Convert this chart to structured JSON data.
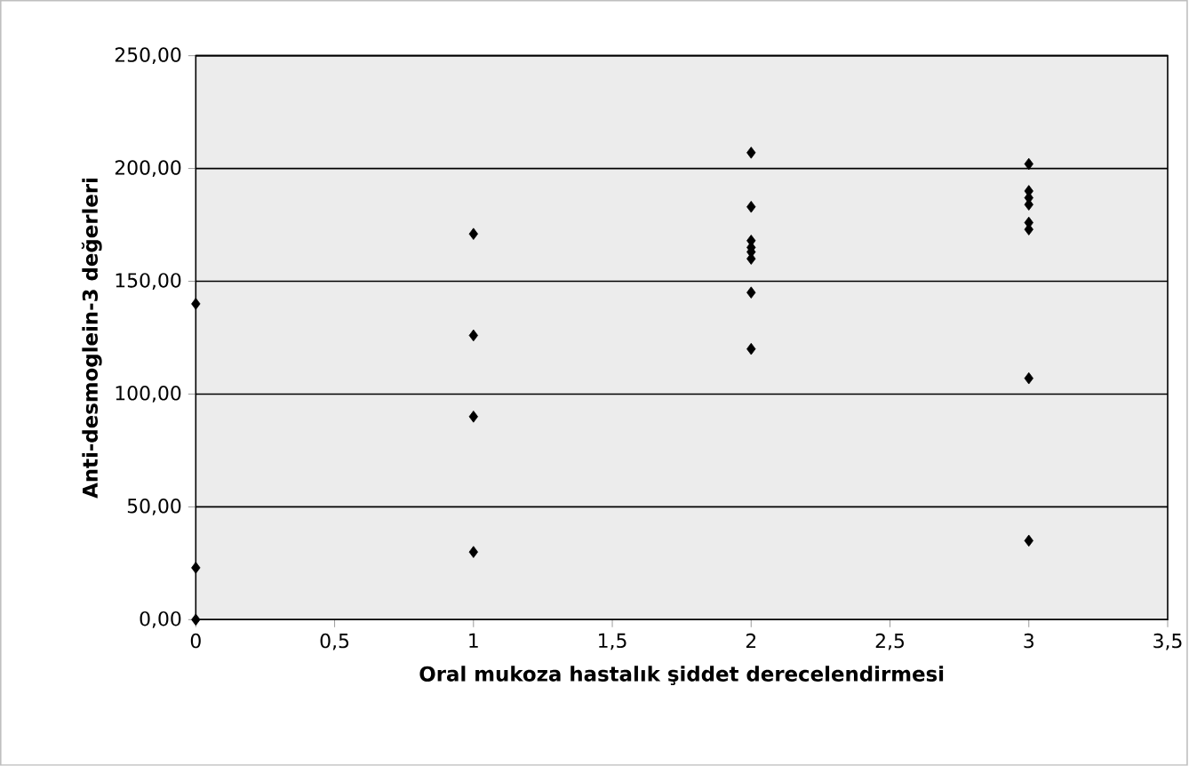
{
  "chart_data": {
    "type": "scatter",
    "xlabel": "Oral mukoza hastalık şiddet derecelendirmesi",
    "ylabel": "Anti-desmoglein-3 değerleri",
    "x": [
      0,
      0,
      0,
      1,
      1,
      1,
      1,
      2,
      2,
      2,
      2,
      2,
      2,
      2,
      2,
      3,
      3,
      3,
      3,
      3,
      3,
      3,
      3
    ],
    "values": [
      140,
      23,
      0,
      171,
      126,
      90,
      30,
      207,
      183,
      168,
      165,
      163,
      160,
      145,
      120,
      202,
      190,
      187,
      184,
      176,
      173,
      107,
      35
    ],
    "color": "#000000",
    "marker": "diamond",
    "xlim": [
      0,
      3.5
    ],
    "ylim": [
      0,
      250
    ],
    "xticks": [
      0,
      {
        "value": 0.5,
        "label": "0,5"
      },
      1,
      {
        "value": 1.5,
        "label": "1,5"
      },
      2,
      {
        "value": 2.5,
        "label": "2,5"
      },
      3,
      {
        "value": 3.5,
        "label": "3,5"
      }
    ],
    "yticks": [
      {
        "value": 0,
        "label": "0,00"
      },
      {
        "value": 50,
        "label": "50,00"
      },
      {
        "value": 100,
        "label": "100,00"
      },
      {
        "value": 150,
        "label": "150,00"
      },
      {
        "value": 200,
        "label": "200,00"
      },
      {
        "value": 250,
        "label": "250,00"
      }
    ],
    "grid": "y"
  }
}
